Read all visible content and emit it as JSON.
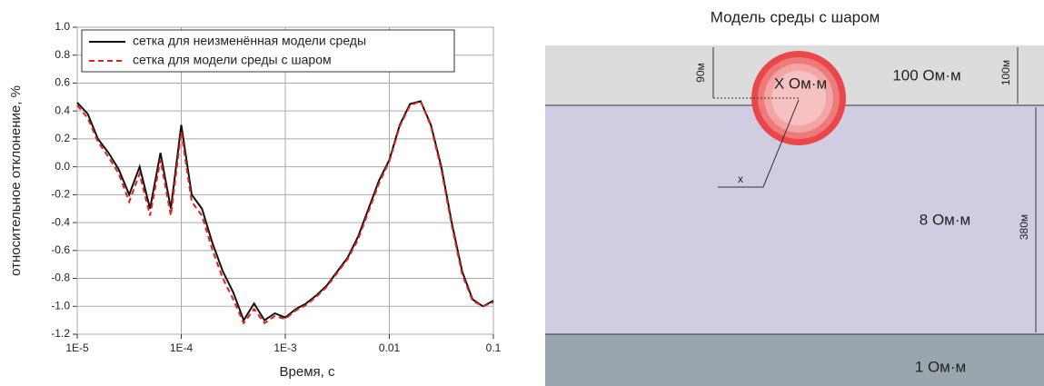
{
  "chart_data": {
    "type": "line",
    "x_label": "Время, с",
    "y_label": "относительное отклонение, %",
    "xscale": "log",
    "x": [
      1e-05,
      1.26e-05,
      1.58e-05,
      2e-05,
      2.51e-05,
      3.16e-05,
      3.98e-05,
      5.01e-05,
      6.31e-05,
      7.94e-05,
      0.0001,
      0.000126,
      0.000158,
      0.0002,
      0.000251,
      0.000316,
      0.000398,
      0.000501,
      0.000631,
      0.000794,
      0.001,
      0.00126,
      0.00158,
      0.002,
      0.00251,
      0.00316,
      0.00398,
      0.00501,
      0.00631,
      0.00794,
      0.01,
      0.0126,
      0.0158,
      0.02,
      0.0251,
      0.0316,
      0.0398,
      0.0501,
      0.0631,
      0.0794,
      0.1
    ],
    "series": [
      {
        "name": "сетка для неизменённая модели среды",
        "color": "#111111",
        "dash": "solid",
        "values": [
          0.46,
          0.38,
          0.2,
          0.1,
          -0.02,
          -0.2,
          0.0,
          -0.3,
          0.1,
          -0.3,
          0.3,
          -0.2,
          -0.3,
          -0.55,
          -0.75,
          -0.9,
          -1.1,
          -0.98,
          -1.1,
          -1.05,
          -1.08,
          -1.02,
          -0.98,
          -0.92,
          -0.85,
          -0.75,
          -0.65,
          -0.5,
          -0.3,
          -0.1,
          0.05,
          0.3,
          0.45,
          0.47,
          0.3,
          0.0,
          -0.4,
          -0.75,
          -0.95,
          -1.0,
          -0.96
        ]
      },
      {
        "name": "сетка для модели среды с шаром",
        "color": "#e0201b",
        "dash": "dashed",
        "values": [
          0.44,
          0.35,
          0.18,
          0.07,
          -0.05,
          -0.25,
          -0.05,
          -0.35,
          0.05,
          -0.35,
          0.25,
          -0.25,
          -0.35,
          -0.6,
          -0.8,
          -0.95,
          -1.12,
          -1.02,
          -1.12,
          -1.07,
          -1.09,
          -1.03,
          -0.99,
          -0.93,
          -0.86,
          -0.76,
          -0.66,
          -0.52,
          -0.32,
          -0.12,
          0.04,
          0.29,
          0.44,
          0.47,
          0.29,
          -0.02,
          -0.42,
          -0.77,
          -0.96,
          -1.0,
          -0.97
        ]
      }
    ],
    "xlim": [
      1e-05,
      0.1
    ],
    "xticks": [
      {
        "value": 1e-05,
        "label": "1E-5"
      },
      {
        "value": 0.0001,
        "label": "1E-4"
      },
      {
        "value": 0.001,
        "label": "1E-3"
      },
      0.01,
      0.1
    ],
    "ylim": [
      -1.2,
      1.0
    ],
    "yticks": [
      -1.2,
      {
        "value": -1,
        "label": "-1.0"
      },
      -0.8,
      -0.6,
      -0.4,
      -0.2,
      {
        "value": 0,
        "label": "0.0"
      },
      0.2,
      0.4,
      0.6,
      0.8,
      {
        "value": 1,
        "label": "1.0"
      }
    ],
    "grid": true,
    "legend": "top-left"
  },
  "diagram": {
    "title": "Модель среды с шаром",
    "layers": [
      "100 Ом·м",
      "8 Ом·м",
      "1 Ом·м"
    ],
    "sphere": "X Ом·м",
    "dims": [
      "90м",
      "100м",
      "380м",
      "x"
    ]
  }
}
